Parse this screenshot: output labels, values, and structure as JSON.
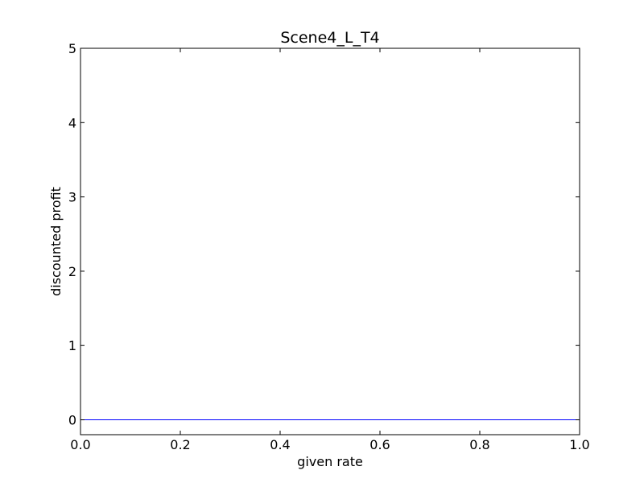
{
  "chart_data": {
    "type": "line",
    "title": "Scene4_L_T4",
    "xlabel": "given rate",
    "ylabel": "discounted profit",
    "xlim": [
      0.0,
      1.0
    ],
    "ylim": [
      -0.2,
      5.0
    ],
    "xticks": [
      0.0,
      0.2,
      0.4,
      0.6,
      0.8,
      1.0
    ],
    "xtick_labels": [
      "0.0",
      "0.2",
      "0.4",
      "0.6",
      "0.8",
      "1.0"
    ],
    "yticks": [
      0,
      1,
      2,
      3,
      4,
      5
    ],
    "ytick_labels": [
      "0",
      "1",
      "2",
      "3",
      "4",
      "5"
    ],
    "grid": false,
    "series": [
      {
        "color": "#0000ff",
        "x": [
          0.0,
          0.1,
          0.2,
          0.3,
          0.4,
          0.5,
          0.6,
          0.7,
          0.8,
          0.9,
          1.0
        ],
        "y": [
          0,
          0,
          0,
          0,
          0,
          0,
          0,
          0,
          0,
          0,
          0
        ]
      }
    ]
  }
}
